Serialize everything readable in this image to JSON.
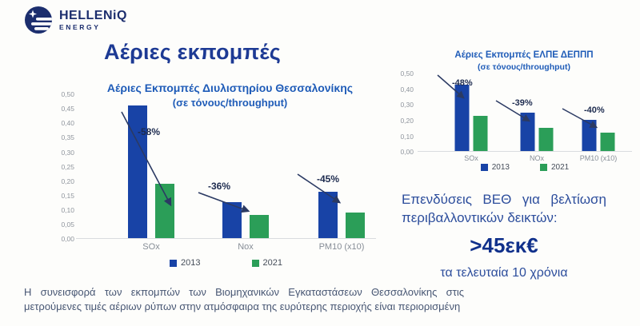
{
  "brand": {
    "name": "HELLENiQ",
    "tagline": "ENERGY"
  },
  "page_title": "Αέριες εκπομπές",
  "colors": {
    "series": [
      "#1843a6",
      "#2b9e58"
    ],
    "brand_navy": "#1c2e6e",
    "title_navy": "#1d3a94",
    "chart_title_blue": "#1f5cb8",
    "annotation_navy": "#1d2b4f",
    "axis_gray": "#8f959d",
    "baseline_gray": "#d9dcdf"
  },
  "chart_data": [
    {
      "type": "bar",
      "title": "Αέριες Εκπομπές Διυλιστηρίου Θεσσαλονίκης",
      "subtitle": "(σε τόνους/throughput)",
      "categories": [
        "SOx",
        "Nox",
        "PM10 (x10)"
      ],
      "series": [
        {
          "name": "2013",
          "values": [
            0.46,
            0.125,
            0.16
          ]
        },
        {
          "name": "2021",
          "values": [
            0.19,
            0.08,
            0.09
          ]
        }
      ],
      "annotations": [
        "-58%",
        "-36%",
        "-45%"
      ],
      "ylim": [
        0,
        0.5
      ],
      "y_ticks": [
        "0,50",
        "0,45",
        "0,40",
        "0,35",
        "0,30",
        "0,25",
        "0,20",
        "0,15",
        "0,10",
        "0,05",
        "0,00"
      ],
      "legend": [
        "2013",
        "2021"
      ],
      "legend_position": "bottom",
      "grid": false
    },
    {
      "type": "bar",
      "title": "Αέριες Εκπομπές ΕΛΠΕ ΔΕΠΠΠ",
      "subtitle": "(σε τόνους/throughput)",
      "categories": [
        "SOx",
        "NOx",
        "PM10 (x10)"
      ],
      "series": [
        {
          "name": "2013",
          "values": [
            0.43,
            0.25,
            0.2
          ]
        },
        {
          "name": "2021",
          "values": [
            0.225,
            0.15,
            0.12
          ]
        }
      ],
      "annotations": [
        "-48%",
        "-39%",
        "-40%"
      ],
      "ylim": [
        0,
        0.5
      ],
      "y_ticks": [
        "0,50",
        "0,40",
        "0,30",
        "0,20",
        "0,10",
        "0,00"
      ],
      "legend": [
        "2013",
        "2021"
      ],
      "legend_position": "bottom",
      "grid": false
    }
  ],
  "investment": {
    "line1": "Επενδύσεις ΒΕΘ για βελτίωση",
    "line2": "περιβαλλοντικών δεικτών:",
    "amount": ">45εκ€",
    "period": "τα τελευταία 10 χρόνια"
  },
  "footer": {
    "line1": "Η συνεισφορά των εκπομπών των Βιομηχανικών Εγκαταστάσεων Θεσσαλονίκης στις",
    "line2": "μετρούμενες τιμές αέριων ρύπων στην ατμόσφαιρα της ευρύτερης περιοχής είναι περιορισμένη"
  }
}
